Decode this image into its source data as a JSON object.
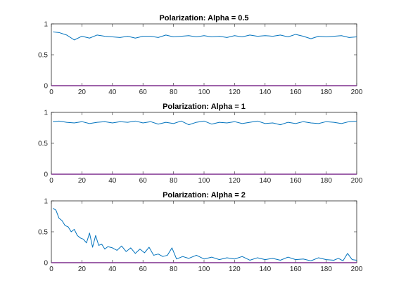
{
  "chart_data": [
    {
      "type": "line",
      "title": "Polarization: Alpha = 0.5",
      "xlim": [
        0,
        200
      ],
      "ylim": [
        0,
        1
      ],
      "xticks": [
        0,
        20,
        40,
        60,
        80,
        100,
        120,
        140,
        160,
        180,
        200
      ],
      "yticks": [
        0,
        0.5,
        1
      ],
      "xtick_labels": [
        "0",
        "20",
        "40",
        "60",
        "80",
        "100",
        "120",
        "140",
        "160",
        "180",
        "200"
      ],
      "ytick_labels": [
        "0",
        "0.5",
        "1"
      ],
      "grid": false,
      "series": [
        {
          "color": "#0072BD",
          "x": [
            1,
            5,
            10,
            15,
            20,
            25,
            30,
            35,
            40,
            45,
            50,
            55,
            60,
            65,
            70,
            75,
            80,
            85,
            90,
            95,
            100,
            105,
            110,
            115,
            120,
            125,
            130,
            135,
            140,
            145,
            150,
            155,
            160,
            165,
            170,
            175,
            180,
            185,
            190,
            195,
            200
          ],
          "y": [
            0.87,
            0.86,
            0.82,
            0.74,
            0.8,
            0.77,
            0.82,
            0.8,
            0.79,
            0.78,
            0.8,
            0.77,
            0.8,
            0.8,
            0.78,
            0.82,
            0.79,
            0.8,
            0.81,
            0.79,
            0.81,
            0.79,
            0.8,
            0.78,
            0.81,
            0.79,
            0.82,
            0.8,
            0.81,
            0.8,
            0.82,
            0.79,
            0.83,
            0.8,
            0.76,
            0.8,
            0.79,
            0.8,
            0.81,
            0.78,
            0.79
          ]
        },
        {
          "color": "#7E2F8E",
          "x": [
            0,
            200
          ],
          "y": [
            0,
            0
          ]
        }
      ]
    },
    {
      "type": "line",
      "title": "Polarization: Alpha = 1",
      "xlim": [
        0,
        200
      ],
      "ylim": [
        0,
        1
      ],
      "xticks": [
        0,
        20,
        40,
        60,
        80,
        100,
        120,
        140,
        160,
        180,
        200
      ],
      "yticks": [
        0,
        0.5,
        1
      ],
      "xtick_labels": [
        "0",
        "20",
        "40",
        "60",
        "80",
        "100",
        "120",
        "140",
        "160",
        "180",
        "200"
      ],
      "ytick_labels": [
        "0",
        "0.5",
        "1"
      ],
      "grid": false,
      "series": [
        {
          "color": "#0072BD",
          "x": [
            1,
            5,
            10,
            15,
            20,
            25,
            30,
            35,
            40,
            45,
            50,
            55,
            60,
            65,
            70,
            75,
            80,
            85,
            90,
            95,
            100,
            105,
            110,
            115,
            120,
            125,
            130,
            135,
            140,
            145,
            150,
            155,
            160,
            165,
            170,
            175,
            180,
            185,
            190,
            195,
            200
          ],
          "y": [
            0.85,
            0.86,
            0.84,
            0.83,
            0.85,
            0.82,
            0.84,
            0.85,
            0.83,
            0.85,
            0.84,
            0.86,
            0.83,
            0.85,
            0.81,
            0.84,
            0.82,
            0.86,
            0.8,
            0.84,
            0.86,
            0.81,
            0.84,
            0.83,
            0.85,
            0.82,
            0.84,
            0.86,
            0.82,
            0.83,
            0.8,
            0.84,
            0.82,
            0.85,
            0.83,
            0.82,
            0.85,
            0.84,
            0.82,
            0.85,
            0.86
          ]
        },
        {
          "color": "#7E2F8E",
          "x": [
            0,
            200
          ],
          "y": [
            0,
            0
          ]
        }
      ]
    },
    {
      "type": "line",
      "title": "Polarization: Alpha = 2",
      "xlim": [
        0,
        200
      ],
      "ylim": [
        0,
        1
      ],
      "xticks": [
        0,
        20,
        40,
        60,
        80,
        100,
        120,
        140,
        160,
        180,
        200
      ],
      "yticks": [
        0,
        0.5,
        1
      ],
      "xtick_labels": [
        "0",
        "20",
        "40",
        "60",
        "80",
        "100",
        "120",
        "140",
        "160",
        "180",
        "200"
      ],
      "ytick_labels": [
        "0",
        "0.5",
        "1"
      ],
      "grid": false,
      "series": [
        {
          "color": "#0072BD",
          "x": [
            1,
            3,
            5,
            7,
            9,
            11,
            13,
            15,
            17,
            19,
            21,
            23,
            25,
            27,
            29,
            31,
            33,
            35,
            37,
            40,
            43,
            46,
            49,
            52,
            55,
            58,
            61,
            64,
            67,
            70,
            73,
            76,
            79,
            82,
            86,
            90,
            95,
            100,
            105,
            110,
            115,
            120,
            125,
            130,
            135,
            140,
            145,
            150,
            155,
            160,
            165,
            170,
            175,
            180,
            185,
            188,
            191,
            194,
            197,
            200
          ],
          "y": [
            0.88,
            0.85,
            0.72,
            0.68,
            0.6,
            0.58,
            0.5,
            0.54,
            0.44,
            0.4,
            0.38,
            0.32,
            0.48,
            0.25,
            0.44,
            0.28,
            0.3,
            0.22,
            0.26,
            0.24,
            0.2,
            0.27,
            0.18,
            0.24,
            0.15,
            0.22,
            0.16,
            0.25,
            0.12,
            0.14,
            0.1,
            0.12,
            0.24,
            0.06,
            0.1,
            0.07,
            0.12,
            0.06,
            0.09,
            0.05,
            0.08,
            0.06,
            0.1,
            0.04,
            0.08,
            0.05,
            0.07,
            0.04,
            0.09,
            0.05,
            0.06,
            0.03,
            0.08,
            0.05,
            0.04,
            0.07,
            0.03,
            0.15,
            0.05,
            0.04
          ]
        },
        {
          "color": "#7E2F8E",
          "x": [
            0,
            200
          ],
          "y": [
            0,
            0
          ]
        }
      ]
    }
  ]
}
